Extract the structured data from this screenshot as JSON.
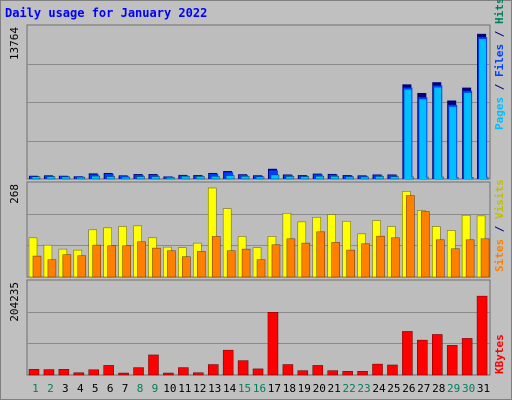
{
  "title": "Daily usage for January 2022",
  "colors": {
    "background": "#c0c0c0",
    "panel": "#bdbdbd",
    "gridline": "#8c8c8c",
    "border": "#6e6e6e",
    "pages": "#00c0ff",
    "files": "#0040ff",
    "hits": "#00805c",
    "visits": "#ffff00",
    "sites": "#ff8000",
    "kbytes": "#ff0000",
    "weekday_label": "#000000",
    "weekend_label": "#00805c"
  },
  "chart_data": [
    {
      "type": "bar",
      "panel": "hits-files-pages",
      "ymax_label": "13764",
      "ylim": [
        0,
        13764
      ],
      "legend": {
        "pages": "Pages",
        "files": "Files",
        "hits": "Hits",
        "sep1": " / ",
        "sep2": " / "
      },
      "categories": [
        "1",
        "2",
        "3",
        "4",
        "5",
        "6",
        "7",
        "8",
        "9",
        "10",
        "11",
        "12",
        "13",
        "14",
        "15",
        "16",
        "17",
        "18",
        "19",
        "20",
        "21",
        "22",
        "23",
        "24",
        "25",
        "26",
        "27",
        "28",
        "29",
        "30",
        "31"
      ],
      "weekend_days": [
        "1",
        "2",
        "8",
        "9",
        "15",
        "16",
        "22",
        "23",
        "29",
        "30"
      ],
      "series": [
        {
          "name": "Hits",
          "values": [
            300,
            340,
            300,
            260,
            520,
            560,
            340,
            460,
            460,
            240,
            380,
            370,
            560,
            740,
            440,
            350,
            950,
            420,
            370,
            500,
            470,
            370,
            340,
            420,
            420,
            8800,
            8000,
            9000,
            7300,
            8500,
            13500
          ]
        },
        {
          "name": "Files",
          "values": [
            250,
            280,
            260,
            230,
            420,
            480,
            290,
            380,
            380,
            210,
            320,
            310,
            470,
            620,
            370,
            300,
            800,
            360,
            320,
            420,
            390,
            310,
            290,
            350,
            350,
            8500,
            7600,
            8700,
            6900,
            8200,
            13200
          ]
        },
        {
          "name": "Pages",
          "values": [
            210,
            220,
            200,
            170,
            270,
            230,
            180,
            230,
            230,
            150,
            250,
            240,
            250,
            320,
            250,
            200,
            380,
            240,
            220,
            260,
            250,
            200,
            190,
            240,
            220,
            200,
            180,
            190,
            150,
            160,
            180
          ]
        }
      ]
    },
    {
      "type": "bar",
      "panel": "visits-sites",
      "ymax_label": "268",
      "ylim": [
        0,
        268
      ],
      "legend": {
        "sites": "Sites",
        "visits": "Visits",
        "sep": " / "
      },
      "categories": [
        "1",
        "2",
        "3",
        "4",
        "5",
        "6",
        "7",
        "8",
        "9",
        "10",
        "11",
        "12",
        "13",
        "14",
        "15",
        "16",
        "17",
        "18",
        "19",
        "20",
        "21",
        "22",
        "23",
        "24",
        "25",
        "26",
        "27",
        "28",
        "29",
        "30",
        "31"
      ],
      "series": [
        {
          "name": "Visits",
          "values": [
            118,
            96,
            84,
            81,
            142,
            148,
            152,
            154,
            118,
            90,
            88,
            102,
            268,
            206,
            122,
            88,
            122,
            192,
            166,
            180,
            188,
            168,
            130,
            170,
            152,
            258,
            200,
            152,
            140,
            186,
            184
          ]
        },
        {
          "name": "Sites",
          "values": [
            63,
            52,
            67,
            64,
            96,
            94,
            94,
            106,
            87,
            79,
            61,
            77,
            122,
            79,
            84,
            52,
            97,
            115,
            102,
            136,
            104,
            81,
            100,
            123,
            118,
            245,
            197,
            112,
            85,
            112,
            115
          ]
        }
      ]
    },
    {
      "type": "bar",
      "panel": "kbytes",
      "ymax_label": "204235",
      "ylim": [
        0,
        204235
      ],
      "legend": {
        "kbytes": "KBytes"
      },
      "categories": [
        "1",
        "2",
        "3",
        "4",
        "5",
        "6",
        "7",
        "8",
        "9",
        "10",
        "11",
        "12",
        "13",
        "14",
        "15",
        "16",
        "17",
        "18",
        "19",
        "20",
        "21",
        "22",
        "23",
        "24",
        "25",
        "26",
        "27",
        "28",
        "29",
        "30",
        "31"
      ],
      "series": [
        {
          "name": "KBytes",
          "values": [
            13000,
            12500,
            13000,
            5200,
            12000,
            22000,
            4500,
            17000,
            46000,
            4500,
            17000,
            5200,
            24000,
            57000,
            33000,
            14000,
            144000,
            24000,
            10000,
            22000,
            10000,
            8500,
            8500,
            25000,
            23000,
            100000,
            80000,
            93000,
            68000,
            84000,
            181000
          ]
        }
      ]
    }
  ]
}
